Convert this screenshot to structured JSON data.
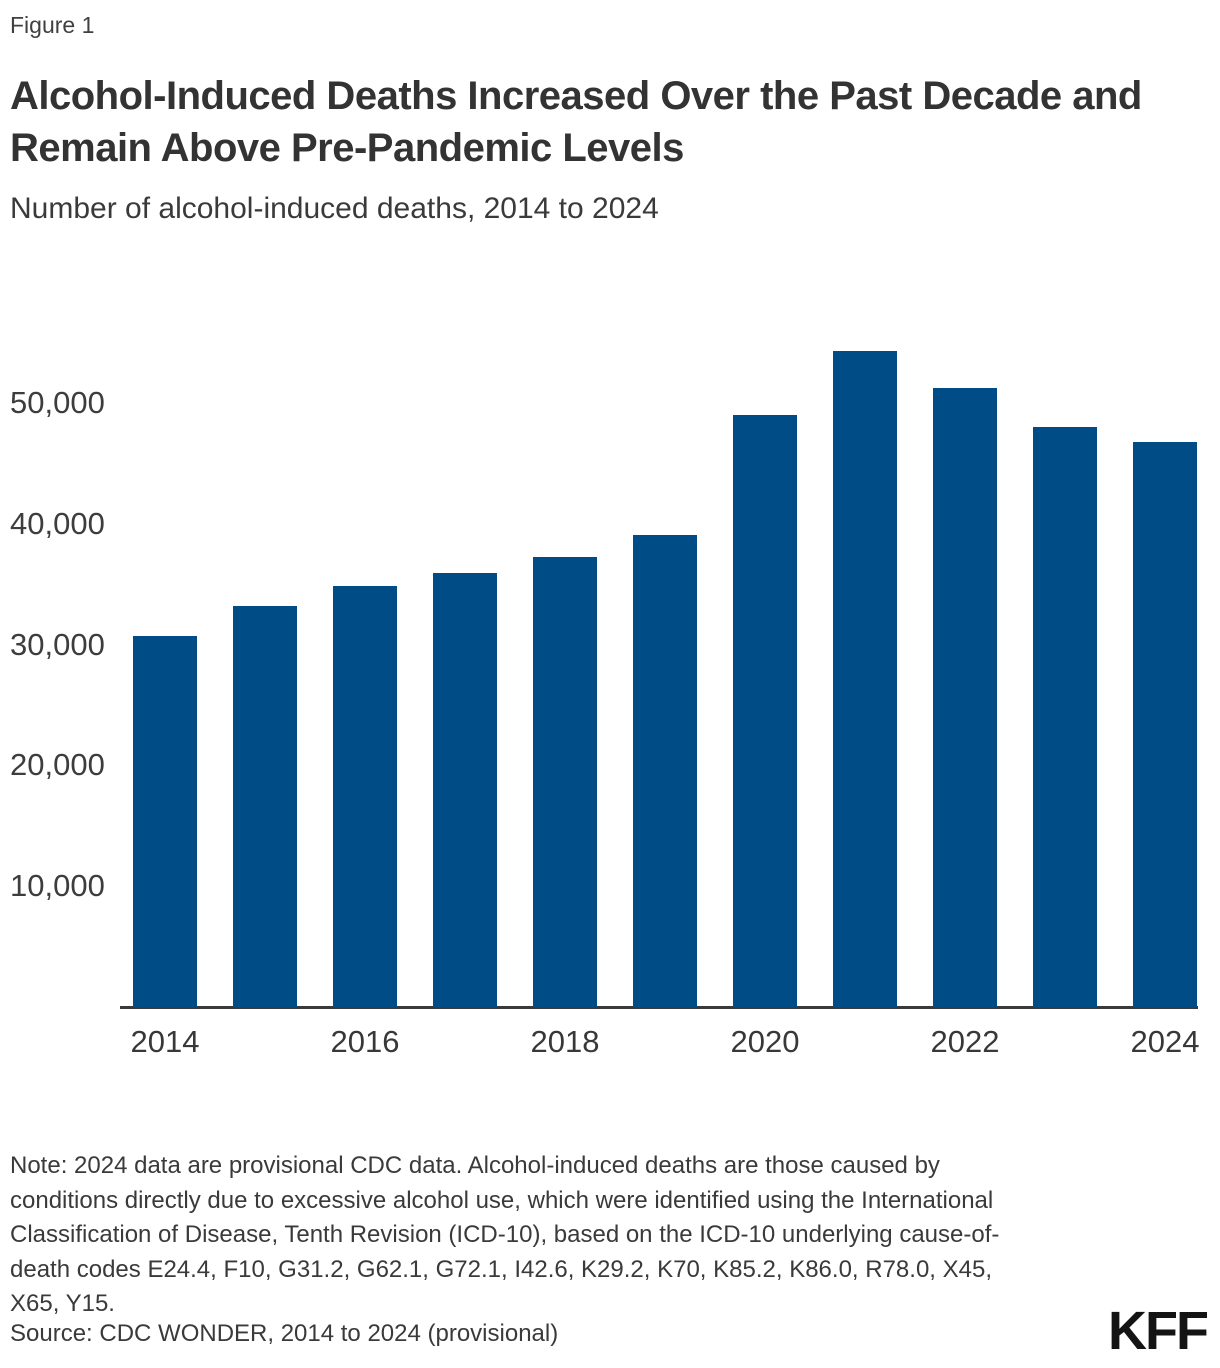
{
  "figure_label": "Figure 1",
  "title": "Alcohol-Induced Deaths Increased Over the Past Decade and Remain Above Pre-Pandemic Levels",
  "title_lines": [
    "Alcohol-Induced Deaths Increased Over the Past Decade and",
    "Remain Above Pre-Pandemic Levels"
  ],
  "subtitle": "Number of alcohol-induced deaths, 2014 to 2024",
  "chart_data": {
    "type": "bar",
    "title": "Alcohol-Induced Deaths Increased Over the Past Decade and Remain Above Pre-Pandemic Levels",
    "subtitle": "Number of alcohol-induced deaths, 2014 to 2024",
    "categories": [
      2014,
      2015,
      2016,
      2017,
      2018,
      2019,
      2020,
      2021,
      2022,
      2023,
      2024
    ],
    "values": [
      30700,
      33200,
      34900,
      35900,
      37300,
      39100,
      49000,
      54300,
      51300,
      48000,
      46800
    ],
    "xlabel": "",
    "ylabel": "Number of alcohol-induced deaths",
    "ylim": [
      0,
      55500
    ],
    "yticks": [
      10000,
      20000,
      30000,
      40000,
      50000
    ],
    "ytick_labels": [
      "10,000",
      "20,000",
      "30,000",
      "40,000",
      "50,000"
    ],
    "xtick_labels": [
      "2014",
      "2016",
      "2018",
      "2020",
      "2022",
      "2024"
    ],
    "bar_color": "#004C86",
    "grid": false,
    "legend": "none"
  },
  "note": "Note: 2024 data are provisional CDC data. Alcohol-induced deaths are those caused by conditions directly due to excessive alcohol use, which were identified using the International Classification of Disease, Tenth Revision (ICD-10), based on the ICD-10 underlying cause-of-death codes E24.4, F10, G31.2, G62.1, G72.1, I42.6, K29.2, K70, K85.2, K86.0, R78.0, X45, X65, Y15.",
  "source": "Source: CDC WONDER, 2014 to 2024 (provisional)",
  "logo_text": "KFF",
  "colors": {
    "bar": "#004C86",
    "axis_line": "#3a3a3a",
    "title_text": "#333333",
    "body_text": "#3a3a3a",
    "logo": "#141414",
    "background": "#ffffff"
  }
}
